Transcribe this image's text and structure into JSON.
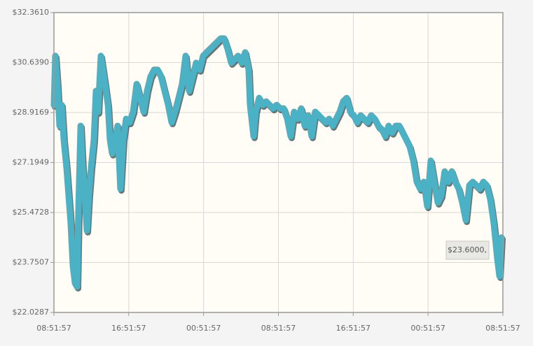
{
  "chart_data": {
    "type": "line",
    "color": "#4bb2c5",
    "x": [
      0,
      0.15,
      0.37,
      0.6,
      0.82,
      1.05,
      1.35,
      1.57,
      1.8,
      2.02,
      2.25,
      2.47,
      2.62,
      2.85,
      3.07,
      3.3,
      3.52,
      3.74,
      3.97,
      4.27,
      4.49,
      4.72,
      5.02,
      5.24,
      5.47,
      5.77,
      5.99,
      6.22,
      6.52,
      6.81,
      7.11,
      7.41,
      7.71,
      8.09,
      8.46,
      8.84,
      9.21,
      9.59,
      9.96,
      10.33,
      10.71,
      11.08,
      11.46,
      11.83,
      12.21,
      12.58,
      12.95,
      13.33,
      13.7,
      14.08,
      14.45,
      14.83,
      15.2,
      15.58,
      15.95,
      16.32,
      16.7,
      17.07,
      17.45,
      17.82,
      18.2,
      18.57,
      18.95,
      19.32,
      19.69,
      20.07,
      20.44,
      20.82,
      20.97,
      21.34,
      21.57,
      21.94,
      22.32,
      22.69,
      23.06,
      23.44,
      23.81,
      24.19,
      24.56,
      24.94,
      25.31,
      25.68,
      26.06,
      26.43,
      26.81,
      27.18,
      27.56,
      27.93,
      28.31,
      28.68,
      29.05,
      29.43,
      29.8,
      30.18,
      30.55,
      30.93,
      31.3,
      31.68,
      32.05,
      32.42,
      32.8,
      33.17,
      33.55,
      33.92,
      34.3,
      34.67,
      35.05,
      35.42,
      35.79,
      36.17,
      36.54,
      36.92,
      37.29,
      37.67,
      38.04,
      38.42,
      38.79,
      39.16,
      39.54,
      39.91,
      40.29,
      40.66,
      41.04,
      41.41,
      41.78,
      42.16,
      42.53,
      42.91,
      43.28,
      43.66,
      44.03,
      44.41,
      44.78,
      45.16,
      45.53,
      45.91,
      46.28,
      46.65,
      47.03,
      47.4,
      47.63,
      47.85
    ],
    "values": [
      29.18,
      30.87,
      29.9,
      28.46,
      29.18,
      27.98,
      27.01,
      26.05,
      25.09,
      23.64,
      23.04,
      22.92,
      25.57,
      28.46,
      27.01,
      26.05,
      24.85,
      26.05,
      27.01,
      27.98,
      29.66,
      28.94,
      30.87,
      30.39,
      29.9,
      29.18,
      27.98,
      27.5,
      27.98,
      28.46,
      26.29,
      27.98,
      28.7,
      28.58,
      28.94,
      29.9,
      29.42,
      28.94,
      29.66,
      30.15,
      30.39,
      30.39,
      30.15,
      29.66,
      29.18,
      28.58,
      28.94,
      29.42,
      29.9,
      30.87,
      29.66,
      30.15,
      30.63,
      30.39,
      30.87,
      30.99,
      31.11,
      31.23,
      31.35,
      31.47,
      31.47,
      31.11,
      30.63,
      30.75,
      30.87,
      30.63,
      30.99,
      30.39,
      29.18,
      28.1,
      28.94,
      29.42,
      29.18,
      29.3,
      29.18,
      29.06,
      29.18,
      29.06,
      29.06,
      28.7,
      28.1,
      28.94,
      28.7,
      29.06,
      28.46,
      28.82,
      28.1,
      28.94,
      28.82,
      28.7,
      28.58,
      28.7,
      28.46,
      28.7,
      28.94,
      29.3,
      29.42,
      28.94,
      28.82,
      28.58,
      28.82,
      28.7,
      28.58,
      28.82,
      28.7,
      28.46,
      28.34,
      28.1,
      28.46,
      28.22,
      28.46,
      28.46,
      28.22,
      27.98,
      27.74,
      27.26,
      26.53,
      26.29,
      26.53,
      25.69,
      27.26,
      26.53,
      25.81,
      26.05,
      26.89,
      26.53,
      26.89,
      26.53,
      26.29,
      25.81,
      25.21,
      26.41,
      26.53,
      26.41,
      26.29,
      26.53,
      26.41,
      25.93,
      25.09,
      23.88,
      23.28,
      24.61
    ],
    "xlim": [
      0,
      48
    ],
    "xticks": [
      {
        "value": 0,
        "label": "08:51:57"
      },
      {
        "value": 8,
        "label": "16:51:57"
      },
      {
        "value": 16,
        "label": "00:51:57"
      },
      {
        "value": 24,
        "label": "08:51:57"
      },
      {
        "value": 32,
        "label": "16:51:57"
      },
      {
        "value": 40,
        "label": "00:51:57"
      },
      {
        "value": 48,
        "label": "08:51:57"
      }
    ],
    "ylim": [
      22.0287,
      32.361
    ],
    "yticks": [
      {
        "value": 22.0287,
        "label": "$22.0287"
      },
      {
        "value": 23.7507,
        "label": "$23.7507"
      },
      {
        "value": 25.4728,
        "label": "$25.4728"
      },
      {
        "value": 27.1949,
        "label": "$27.1949"
      },
      {
        "value": 28.9169,
        "label": "$28.9169"
      },
      {
        "value": 30.639,
        "label": "$30.6390"
      },
      {
        "value": 32.361,
        "label": "$32.3610"
      }
    ],
    "grid": true,
    "tooltip": "$23.6000,"
  }
}
